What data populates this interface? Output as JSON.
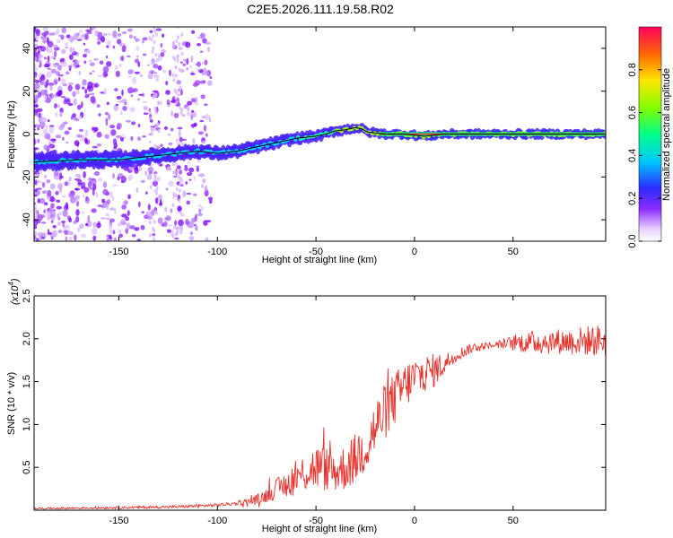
{
  "title": "C2E5.2026.111.19.58.R02",
  "colors": {
    "snr_line": "#e8322c",
    "ridge_line": "#000000"
  },
  "chart_data": [
    {
      "type": "heatmap",
      "name": "spectrogram",
      "xlabel": "Height of straight line (km)",
      "ylabel": "Frequency (Hz)",
      "xlim": [
        -193,
        97
      ],
      "ylim": [
        -50,
        50
      ],
      "xticks": [
        -150,
        -100,
        -50,
        0,
        50
      ],
      "yticks": [
        -40,
        -20,
        0,
        20,
        40
      ],
      "ridge": {
        "x": [
          -193,
          -180,
          -170,
          -160,
          -150,
          -140,
          -130,
          -120,
          -110,
          -100,
          -90,
          -80,
          -70,
          -60,
          -50,
          -45,
          -40,
          -35,
          -30,
          -27,
          -24,
          -20,
          -15,
          -10,
          -5,
          0,
          5,
          10,
          15,
          20,
          97
        ],
        "y": [
          -13,
          -12.5,
          -12,
          -12,
          -12,
          -11,
          -10,
          -9,
          -8,
          -9,
          -8,
          -6,
          -4,
          -2,
          -1,
          0,
          1.5,
          2,
          3,
          2.5,
          1,
          0.5,
          0,
          0,
          0,
          -0.5,
          -1,
          -0.5,
          0,
          0,
          0
        ]
      },
      "colorbar": {
        "label": "Normalized spectral amplitude",
        "range": [
          0,
          1
        ],
        "ticks": [
          0.0,
          0.2,
          0.4,
          0.6,
          0.8
        ],
        "tick_labels": [
          "0.0",
          "0.2",
          "0.4",
          "0.6",
          "0.8"
        ]
      }
    },
    {
      "type": "line",
      "name": "snr",
      "xlabel": "Height of straight line (km)",
      "ylabel": "SNR (10 * v/v)",
      "scale_label": "(x10",
      "scale_exponent": "4",
      "scale_suffix": ")",
      "xlim": [
        -193,
        97
      ],
      "ylim": [
        0,
        2.5
      ],
      "xticks": [
        -150,
        -100,
        -50,
        0,
        50
      ],
      "yticks": [
        0.5,
        1.0,
        1.5,
        2.0,
        2.5
      ],
      "envelope": {
        "x": [
          -193,
          -150,
          -120,
          -100,
          -90,
          -80,
          -75,
          -70,
          -65,
          -60,
          -55,
          -50,
          -45,
          -40,
          -35,
          -30,
          -25,
          -20,
          -15,
          -10,
          -5,
          0,
          5,
          10,
          15,
          20,
          25,
          30,
          40,
          50,
          60,
          70,
          80,
          90,
          97
        ],
        "y": [
          0.02,
          0.03,
          0.04,
          0.06,
          0.08,
          0.12,
          0.18,
          0.25,
          0.3,
          0.38,
          0.45,
          0.5,
          0.48,
          0.45,
          0.5,
          0.6,
          0.75,
          0.95,
          1.15,
          1.3,
          1.45,
          1.55,
          1.6,
          1.63,
          1.7,
          1.8,
          1.85,
          1.9,
          1.93,
          1.95,
          1.96,
          1.97,
          1.97,
          1.98,
          1.98
        ]
      },
      "noise_amplitude": {
        "x": [
          -193,
          -90,
          -80,
          -70,
          -60,
          -50,
          -40,
          -30,
          -20,
          -10,
          0,
          10,
          20,
          40,
          55,
          65,
          75,
          97
        ],
        "y": [
          0.01,
          0.02,
          0.06,
          0.12,
          0.2,
          0.28,
          0.25,
          0.3,
          0.35,
          0.32,
          0.25,
          0.2,
          0.08,
          0.03,
          0.12,
          0.15,
          0.15,
          0.2
        ]
      }
    }
  ]
}
